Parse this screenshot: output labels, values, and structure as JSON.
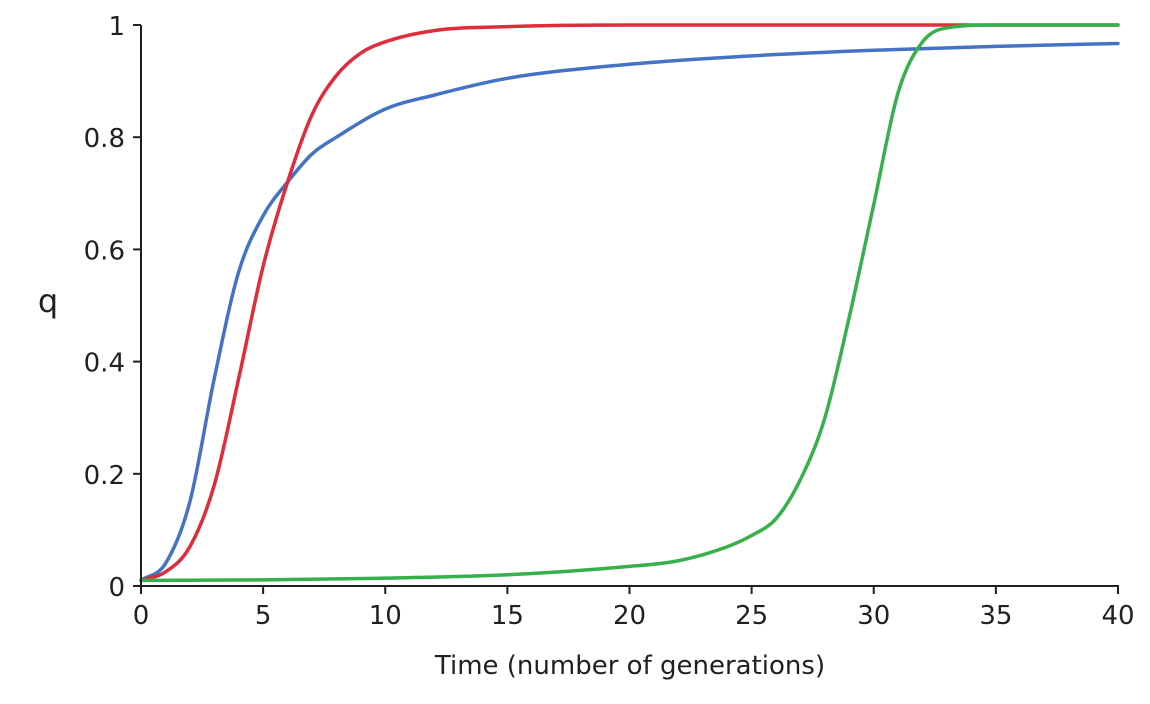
{
  "chart_data": {
    "type": "line",
    "title": "",
    "xlabel": "Time (number of generations)",
    "ylabel": "q",
    "xlim": [
      0,
      40
    ],
    "ylim": [
      0,
      1
    ],
    "xticks": [
      0,
      5,
      10,
      15,
      20,
      25,
      30,
      35,
      40
    ],
    "yticks": [
      0,
      0.2,
      0.4,
      0.6,
      0.8,
      1
    ],
    "ytick_labels": [
      "0",
      "0.2",
      "0.4",
      "0.6",
      "0.8",
      "1"
    ],
    "grid": false,
    "series": [
      {
        "color": "#4472c4",
        "x": [
          0,
          1,
          2,
          3,
          4,
          5,
          6,
          7,
          8,
          10,
          12,
          15,
          20,
          25,
          30,
          35,
          40
        ],
        "y": [
          0.01,
          0.04,
          0.15,
          0.37,
          0.56,
          0.66,
          0.72,
          0.77,
          0.8,
          0.85,
          0.875,
          0.905,
          0.93,
          0.945,
          0.955,
          0.962,
          0.967
        ]
      },
      {
        "color": "#e02b3a",
        "x": [
          0,
          1,
          2,
          3,
          4,
          5,
          6,
          7,
          8,
          9,
          10,
          12,
          15,
          20,
          30,
          40
        ],
        "y": [
          0.01,
          0.025,
          0.07,
          0.18,
          0.37,
          0.57,
          0.72,
          0.84,
          0.91,
          0.95,
          0.97,
          0.99,
          0.997,
          1,
          1,
          1
        ]
      },
      {
        "color": "#36b04a",
        "x": [
          0,
          5,
          10,
          15,
          20,
          22,
          24,
          25,
          26,
          27,
          28,
          29,
          30,
          31,
          32,
          33,
          35,
          40
        ],
        "y": [
          0.01,
          0.011,
          0.014,
          0.02,
          0.035,
          0.045,
          0.07,
          0.09,
          0.12,
          0.19,
          0.3,
          0.48,
          0.68,
          0.88,
          0.97,
          0.995,
          1,
          1
        ]
      }
    ]
  }
}
